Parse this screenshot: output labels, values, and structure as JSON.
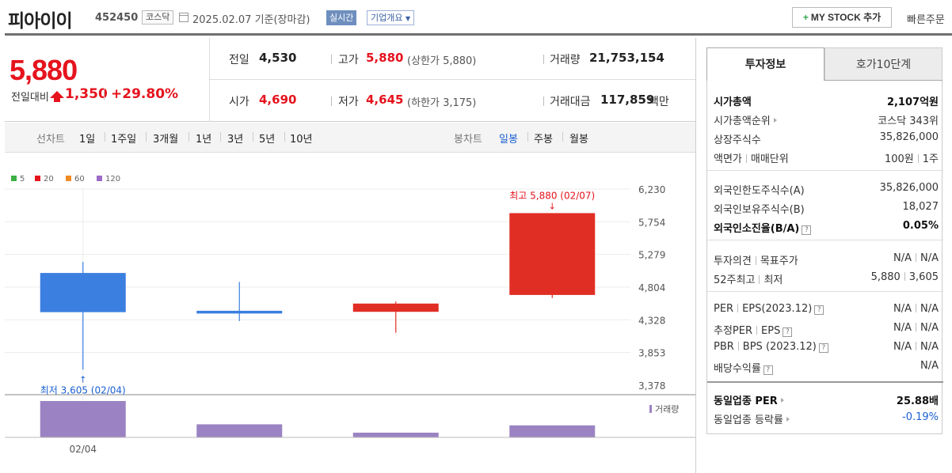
{
  "header": {
    "stock_name": "피아이이",
    "stock_code": "452450",
    "market": "코스닥",
    "date": "2025.02.07 기준(장마감)",
    "realtime_label": "실시간",
    "corp_info_label": "기업개요",
    "mystock_label": "MY STOCK 추가",
    "quick_order_label": "빠른주문"
  },
  "price": {
    "current": "5,880",
    "change_label": "전일대비",
    "change": "1,350",
    "change_pct": "+29.80%",
    "prev_close_label": "전일",
    "prev_close": "4,530",
    "open_label": "시가",
    "open": "4,690",
    "high_label": "고가",
    "high": "5,880",
    "high_sub": "(상한가 5,880)",
    "low_label": "저가",
    "low": "4,645",
    "low_sub": "(하한가 3,175)",
    "volume_label": "거래량",
    "volume": "21,753,154",
    "value_label": "거래대금",
    "value": "117,859",
    "value_unit": "백만"
  },
  "period_bar": {
    "line_label": "선차트",
    "line_items": [
      "1일",
      "1주일",
      "3개월",
      "1년",
      "3년",
      "5년",
      "10년"
    ],
    "candle_label": "봉차트",
    "candle_items": [
      "일봉",
      "주봉",
      "월봉"
    ]
  },
  "colors": {
    "up": "#e02e24",
    "down": "#3b7fe0",
    "volume": "#9b83c3",
    "ma5": "#3cb043",
    "ma20": "#e5131d",
    "ma60": "#f08a24",
    "ma120": "#9b6bc7"
  },
  "chart_data": {
    "type": "candlestick",
    "legend": [
      "5",
      "20",
      "60",
      "120"
    ],
    "y_ticks": [
      "6,230",
      "5,754",
      "5,279",
      "4,804",
      "4,328",
      "3,853",
      "3,378"
    ],
    "ylim": [
      3378,
      6230
    ],
    "x_labels": [
      "02/04"
    ],
    "candles": [
      {
        "date": "02/04",
        "open": 5010,
        "close": 4440,
        "high": 5170,
        "low": 3605
      },
      {
        "open": 4460,
        "close": 4420,
        "high": 4880,
        "low": 4310
      },
      {
        "open": 4445,
        "close": 4565,
        "high": 4595,
        "low": 4140
      },
      {
        "date": "02/07",
        "open": 4690,
        "close": 5880,
        "high": 5880,
        "low": 4645
      }
    ],
    "volume_label": "거래량",
    "volume": [
      1.0,
      0.36,
      0.13,
      0.33
    ],
    "annotations": {
      "max_label": "최고 5,880 (02/07)",
      "min_label": "최저 3,605 (02/04)"
    }
  },
  "panel": {
    "tab_active": "투자정보",
    "tab_other": "호가10단계",
    "rows1": [
      {
        "l": "시가총액",
        "r": "2,107억원"
      },
      {
        "l": "시가총액순위",
        "r": "코스닥 343위"
      },
      {
        "l": "상장주식수",
        "r": "35,826,000"
      },
      {
        "l1": "액면가",
        "l2": "매매단위",
        "r1": "100원",
        "r2": "1주"
      }
    ],
    "rows2": [
      {
        "l": "외국인한도주식수(A)",
        "r": "35,826,000"
      },
      {
        "l": "외국인보유주식수(B)",
        "r": "18,027"
      },
      {
        "l": "외국인소진율(B/A)",
        "r": "0.05%"
      }
    ],
    "rows3": [
      {
        "l1": "투자의견",
        "l2": "목표주가",
        "r1": "N/A",
        "r2": "N/A"
      },
      {
        "l1": "52주최고",
        "l2": "최저",
        "r1": "5,880",
        "r2": "3,605"
      }
    ],
    "rows4": [
      {
        "l1": "PER",
        "l2": "EPS(2023.12)",
        "r1": "N/A",
        "r2": "N/A"
      },
      {
        "l1": "추정PER",
        "l2": "EPS",
        "r1": "N/A",
        "r2": "N/A"
      },
      {
        "l1": "PBR",
        "l2": "BPS (2023.12)",
        "r1": "N/A",
        "r2": "N/A"
      },
      {
        "l": "배당수익률",
        "r": "N/A"
      }
    ],
    "rows5": [
      {
        "l": "동일업종 PER",
        "r": "25.88배"
      },
      {
        "l": "동일업종 등락률",
        "r": "-0.19%"
      }
    ]
  }
}
